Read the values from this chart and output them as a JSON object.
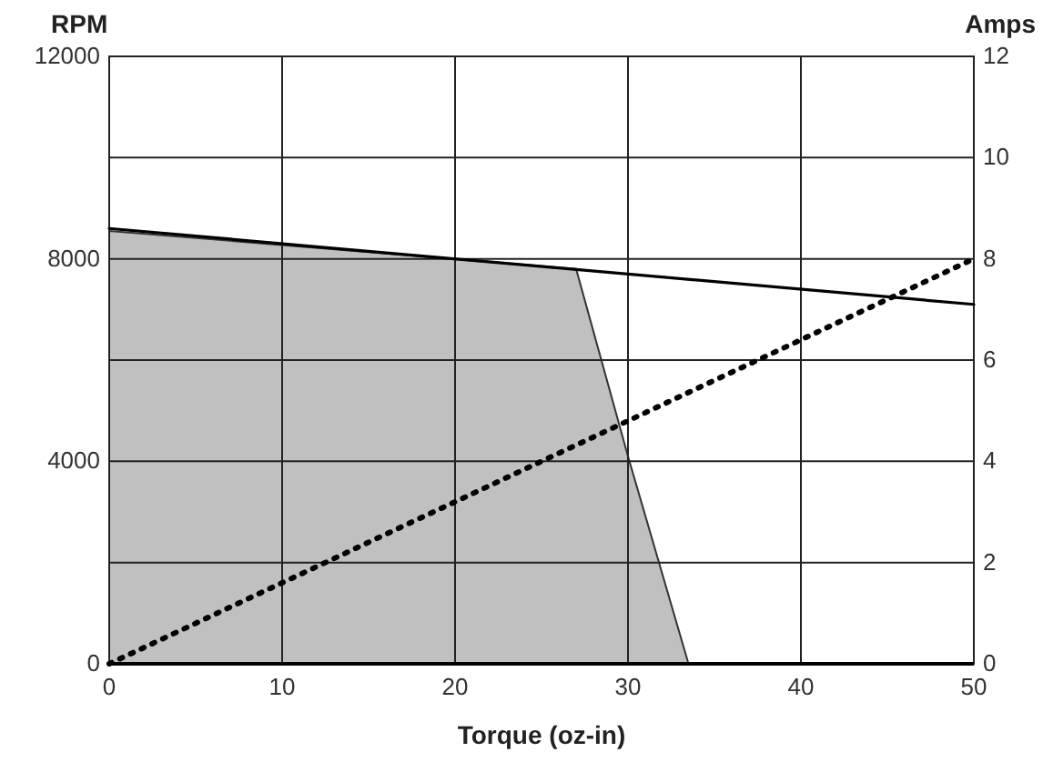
{
  "chart_data": {
    "type": "line",
    "xlabel": "Torque (oz-in)",
    "ylabel": "RPM",
    "y2label": "Amps",
    "xlim": [
      0,
      50
    ],
    "xticks": [
      0,
      10,
      20,
      30,
      40,
      50
    ],
    "ylim": [
      0,
      12000
    ],
    "yticks": [
      0,
      {
        "value": 2000,
        "label": null
      },
      4000,
      {
        "value": 6000,
        "label": null
      },
      8000,
      {
        "value": 10000,
        "label": null
      },
      12000
    ],
    "y2lim": [
      0,
      12
    ],
    "y2ticks": [
      0,
      2,
      4,
      6,
      8,
      10,
      12
    ],
    "grid": true,
    "marker": "none",
    "series": [
      {
        "type": "area",
        "x": [
          0,
          27,
          30,
          33.5
        ],
        "values": [
          8550,
          7800,
          4100,
          0
        ],
        "color": "#c0c0c0"
      },
      {
        "x": [
          0,
          50
        ],
        "values": [
          8600,
          7100
        ],
        "color": "#000000",
        "line_style": "solid"
      },
      {
        "axis": "y2",
        "x": [
          0,
          50
        ],
        "values": [
          0,
          8
        ],
        "color": "#000000",
        "line_style": "dotted"
      }
    ]
  }
}
